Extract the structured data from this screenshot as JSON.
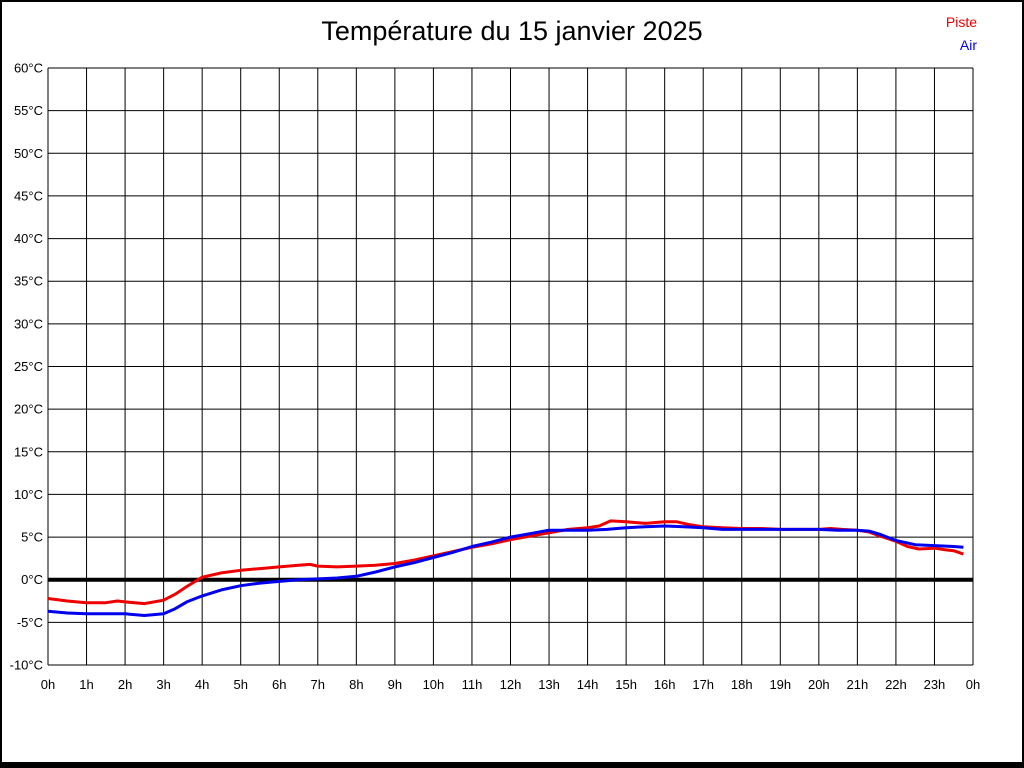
{
  "title": "Température du 15 janvier 2025",
  "legend": {
    "position": "top-right",
    "entries": [
      {
        "label": "Piste",
        "color": "#ee0000"
      },
      {
        "label": "Air",
        "color": "#0000ee"
      }
    ]
  },
  "chart_data": {
    "type": "line",
    "title": "Température du 15 janvier 2025",
    "xlabel": "",
    "ylabel": "",
    "xlim": [
      0,
      24
    ],
    "ylim": [
      -10,
      60
    ],
    "y_step": 5,
    "x_step": 1,
    "grid": true,
    "grid_color": "#000000",
    "zero_line": {
      "value": 0,
      "color": "#000000",
      "width": 4
    },
    "legend_position": "top-right",
    "y_ticks": [
      "60°C",
      "55°C",
      "50°C",
      "45°C",
      "40°C",
      "35°C",
      "30°C",
      "25°C",
      "20°C",
      "15°C",
      "10°C",
      "5°C",
      "0°C",
      "-5°C",
      "-10°C"
    ],
    "x_ticks": [
      "0h",
      "1h",
      "2h",
      "3h",
      "4h",
      "5h",
      "6h",
      "7h",
      "8h",
      "9h",
      "10h",
      "11h",
      "12h",
      "13h",
      "14h",
      "15h",
      "16h",
      "17h",
      "18h",
      "19h",
      "20h",
      "21h",
      "22h",
      "23h",
      "0h"
    ],
    "series": [
      {
        "name": "Piste",
        "color": "#ee0000",
        "x": [
          0,
          0.5,
          1,
          1.5,
          1.8,
          2,
          2.5,
          3,
          3.3,
          3.6,
          4,
          4.5,
          5,
          5.5,
          6,
          6.5,
          6.8,
          7,
          7.5,
          8,
          8.5,
          9,
          9.5,
          10,
          10.5,
          11,
          11.5,
          12,
          12.5,
          13,
          13.5,
          14,
          14.3,
          14.6,
          15,
          15.5,
          16,
          16.3,
          16.6,
          17,
          17.5,
          18,
          18.5,
          19,
          19.5,
          20,
          20.3,
          20.6,
          21,
          21.3,
          21.6,
          22,
          22.3,
          22.6,
          23,
          23.3,
          23.5,
          23.75
        ],
        "y": [
          -2.2,
          -2.5,
          -2.7,
          -2.7,
          -2.5,
          -2.6,
          -2.8,
          -2.4,
          -1.7,
          -0.8,
          0.3,
          0.8,
          1.1,
          1.3,
          1.5,
          1.7,
          1.8,
          1.6,
          1.5,
          1.6,
          1.7,
          1.9,
          2.3,
          2.8,
          3.3,
          3.8,
          4.2,
          4.7,
          5.1,
          5.5,
          5.9,
          6.1,
          6.3,
          6.9,
          6.8,
          6.6,
          6.8,
          6.8,
          6.5,
          6.2,
          6.1,
          6.0,
          6.0,
          5.9,
          5.9,
          5.9,
          6.0,
          5.9,
          5.8,
          5.6,
          5.1,
          4.5,
          3.9,
          3.6,
          3.7,
          3.5,
          3.4,
          3.0
        ]
      },
      {
        "name": "Air",
        "color": "#0000ee",
        "x": [
          0,
          0.5,
          1,
          1.5,
          2,
          2.5,
          3,
          3.3,
          3.6,
          4,
          4.5,
          5,
          5.5,
          6,
          6.5,
          7,
          7.5,
          8,
          8.5,
          9,
          9.5,
          10,
          10.5,
          11,
          11.5,
          12,
          12.5,
          13,
          13.5,
          14,
          14.5,
          15,
          15.5,
          16,
          16.5,
          17,
          17.5,
          18,
          18.5,
          19,
          19.5,
          20,
          20.5,
          21,
          21.3,
          21.6,
          22,
          22.5,
          23,
          23.5,
          23.75
        ],
        "y": [
          -3.7,
          -3.9,
          -4.0,
          -4.0,
          -4.0,
          -4.2,
          -4.0,
          -3.4,
          -2.6,
          -1.9,
          -1.2,
          -0.7,
          -0.4,
          -0.2,
          0.0,
          0.1,
          0.2,
          0.4,
          0.9,
          1.5,
          2.0,
          2.6,
          3.2,
          3.9,
          4.4,
          5.0,
          5.4,
          5.8,
          5.8,
          5.8,
          5.9,
          6.1,
          6.2,
          6.3,
          6.2,
          6.1,
          5.9,
          5.9,
          5.9,
          5.9,
          5.9,
          5.9,
          5.8,
          5.8,
          5.7,
          5.3,
          4.6,
          4.1,
          4.0,
          3.9,
          3.8
        ]
      }
    ]
  }
}
